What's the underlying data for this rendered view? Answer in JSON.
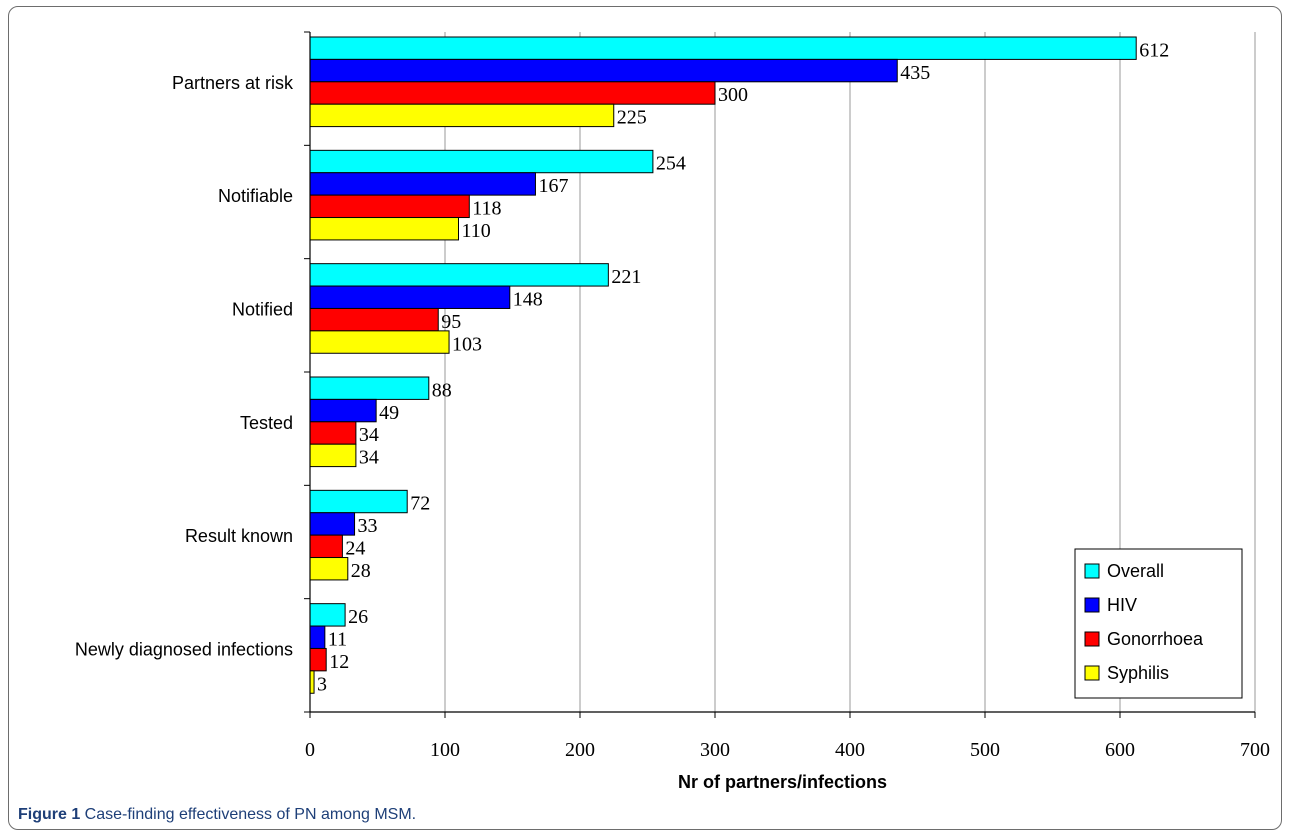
{
  "chart_data": {
    "type": "bar",
    "orientation": "horizontal",
    "categories": [
      "Partners at risk",
      "Notifiable",
      "Notified",
      "Tested",
      "Result known",
      "Newly diagnosed infections"
    ],
    "series": [
      {
        "name": "Overall",
        "color": "#00ffff",
        "values": [
          612,
          254,
          221,
          88,
          72,
          26
        ]
      },
      {
        "name": "HIV",
        "color": "#0000ff",
        "values": [
          435,
          167,
          148,
          49,
          33,
          11
        ]
      },
      {
        "name": "Gonorrhoea",
        "color": "#ff0000",
        "values": [
          300,
          118,
          95,
          34,
          24,
          12
        ]
      },
      {
        "name": "Syphilis",
        "color": "#ffff00",
        "values": [
          225,
          110,
          103,
          34,
          28,
          3
        ]
      }
    ],
    "xlabel": "Nr of partners/infections",
    "ylabel": "",
    "xlim": [
      0,
      700
    ],
    "xticks": [
      0,
      100,
      200,
      300,
      400,
      500,
      600,
      700
    ],
    "grid": true,
    "legend_position": "bottom-right"
  },
  "caption": {
    "label": "Figure 1",
    "text": " Case-finding effectiveness of PN among MSM."
  }
}
